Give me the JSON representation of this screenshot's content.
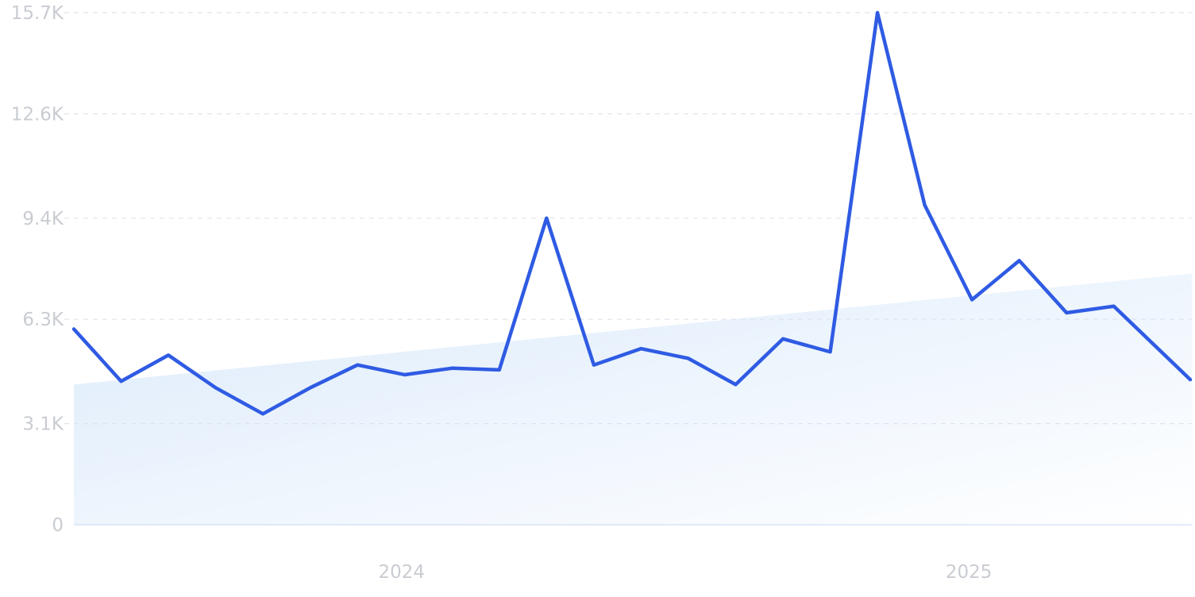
{
  "chart_data": {
    "type": "line",
    "title": "",
    "xlabel": "",
    "ylabel": "",
    "ylim": [
      0,
      15700
    ],
    "grid": true,
    "y_ticks": [
      {
        "value": 0,
        "label": "0"
      },
      {
        "value": 3100,
        "label": "3.1K"
      },
      {
        "value": 6300,
        "label": "6.3K"
      },
      {
        "value": 9400,
        "label": "9.4K"
      },
      {
        "value": 12600,
        "label": "12.6K"
      },
      {
        "value": 15700,
        "label": "15.7K"
      }
    ],
    "x_ticks": [
      {
        "x": "2024-01",
        "label": "2024"
      },
      {
        "x": "2025-01",
        "label": "2025"
      }
    ],
    "x": [
      "2023-06",
      "2023-07",
      "2023-08",
      "2023-09",
      "2023-10",
      "2023-11",
      "2023-12",
      "2024-01",
      "2024-02",
      "2024-03",
      "2024-04",
      "2024-05",
      "2024-06",
      "2024-07",
      "2024-08",
      "2024-09",
      "2024-10",
      "2024-11",
      "2024-12",
      "2025-01",
      "2025-02",
      "2025-03",
      "2025-04",
      "2025-05",
      "2025-06"
    ],
    "series": [
      {
        "values": [
          6000,
          4400,
          5200,
          4200,
          3400,
          4200,
          4900,
          4600,
          4800,
          4750,
          9400,
          4900,
          5400,
          5100,
          4300,
          5700,
          5300,
          15700,
          9800,
          6900,
          8100,
          6500,
          6700,
          4450,
          null
        ],
        "color": "#2f5be3"
      }
    ],
    "trend": {
      "start": 4300,
      "end": 7700,
      "fill_color_start": "#dcebfb",
      "fill_color_end": "#ffffff"
    },
    "colors": {
      "line": "#2f5be3",
      "grid": "#dde3ee",
      "tick_text": "#c9ccd2"
    }
  }
}
